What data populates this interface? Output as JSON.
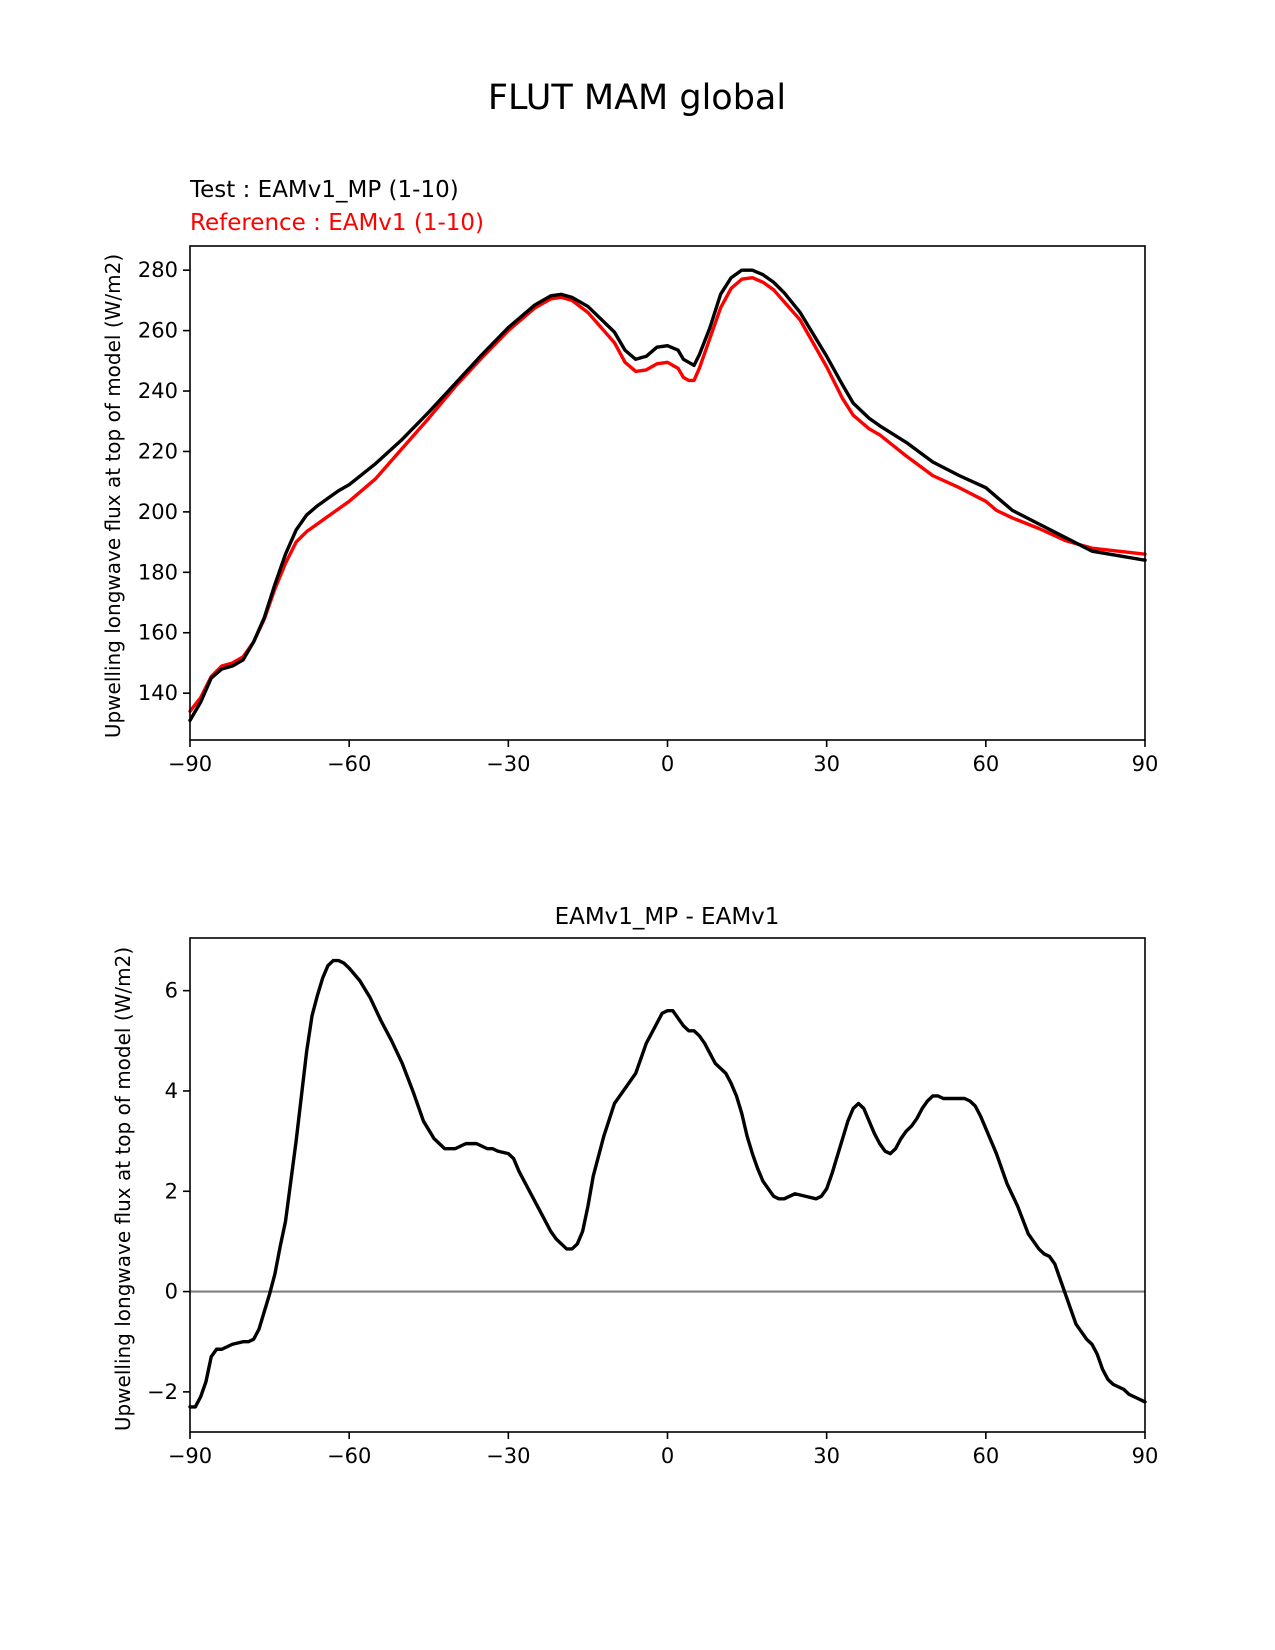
{
  "figure": {
    "suptitle": "FLUT MAM global"
  },
  "chart_data": [
    {
      "type": "line",
      "legend": {
        "test_label": "Test : EAMv1_MP (1-10)",
        "reference_label": "Reference : EAMv1 (1-10)"
      },
      "ylabel": "Upwelling longwave flux at top of model (W/m2)",
      "xlabel": "",
      "xlim": [
        -90,
        90
      ],
      "ylim": [
        124.5,
        288
      ],
      "xticks": [
        -90,
        -60,
        -30,
        0,
        30,
        60,
        90
      ],
      "xtick_labels": [
        "−90",
        "−60",
        "−30",
        "0",
        "30",
        "60",
        "90"
      ],
      "yticks": [
        140,
        160,
        180,
        200,
        220,
        240,
        260,
        280
      ],
      "ytick_labels": [
        "140",
        "160",
        "180",
        "200",
        "220",
        "240",
        "260",
        "280"
      ],
      "series": [
        {
          "name": "Test : EAMv1_MP (1-10)",
          "color": "#000000",
          "x": [
            -90,
            -88,
            -86,
            -84,
            -82,
            -80,
            -78,
            -76,
            -74,
            -72,
            -70,
            -68,
            -66,
            -64,
            -62,
            -60,
            -55,
            -50,
            -45,
            -40,
            -35,
            -30,
            -25,
            -22,
            -20,
            -18,
            -15,
            -10,
            -8,
            -6,
            -4,
            -2,
            0,
            2,
            3,
            4,
            5,
            6,
            8,
            10,
            12,
            14,
            16,
            18,
            20,
            22,
            25,
            30,
            33,
            35,
            38,
            40,
            45,
            50,
            55,
            60,
            62,
            65,
            70,
            75,
            80,
            85,
            90
          ],
          "y": [
            131,
            137,
            145,
            148,
            149,
            151,
            157,
            165,
            176,
            186,
            194,
            199,
            202,
            204.5,
            207,
            209,
            216,
            224,
            233,
            242.5,
            252,
            261,
            268.5,
            271.5,
            272,
            271,
            268,
            259.5,
            253.5,
            250.5,
            251.5,
            254.5,
            255,
            253.5,
            250.5,
            249.5,
            248.5,
            252,
            261,
            272,
            277.5,
            280,
            280,
            278.5,
            276,
            272.5,
            266,
            251.5,
            242,
            236,
            231,
            228.5,
            223,
            216.5,
            212,
            208,
            205,
            200.5,
            196,
            191.5,
            187,
            185.5,
            184
          ]
        },
        {
          "name": "Reference : EAMv1 (1-10)",
          "color": "#ff0000",
          "x": [
            -90,
            -88,
            -86,
            -84,
            -82,
            -80,
            -78,
            -76,
            -74,
            -72,
            -70,
            -68,
            -66,
            -64,
            -62,
            -60,
            -55,
            -50,
            -45,
            -40,
            -35,
            -30,
            -25,
            -22,
            -20,
            -18,
            -15,
            -10,
            -8,
            -6,
            -4,
            -2,
            0,
            2,
            3,
            4,
            5,
            6,
            8,
            10,
            12,
            14,
            16,
            18,
            20,
            22,
            25,
            30,
            33,
            35,
            38,
            40,
            45,
            50,
            55,
            60,
            62,
            65,
            70,
            75,
            80,
            85,
            90
          ],
          "y": [
            134,
            138.5,
            145.5,
            149,
            150,
            152,
            157,
            164.5,
            174.5,
            183,
            190,
            193.5,
            196,
            198.5,
            201,
            203.5,
            211,
            221,
            231,
            241.5,
            251,
            260,
            267.5,
            270.5,
            271,
            270,
            266,
            256,
            249.5,
            246.5,
            247,
            249,
            249.5,
            247.5,
            244.5,
            243.5,
            243.5,
            247.5,
            257.5,
            267.5,
            274,
            277,
            277.5,
            276,
            273.5,
            269.5,
            263.5,
            248,
            237.5,
            232,
            227.5,
            225.5,
            218.5,
            212,
            208,
            203.5,
            200.5,
            198,
            194.5,
            190.5,
            188,
            187,
            186
          ]
        }
      ]
    },
    {
      "type": "line",
      "title": "EAMv1_MP - EAMv1",
      "ylabel": "Upwelling longwave flux at top of model (W/m2)",
      "xlabel": "",
      "xlim": [
        -90,
        90
      ],
      "ylim": [
        -2.8,
        7.05
      ],
      "xticks": [
        -90,
        -60,
        -30,
        0,
        30,
        60,
        90
      ],
      "xtick_labels": [
        "−90",
        "−60",
        "−30",
        "0",
        "30",
        "60",
        "90"
      ],
      "yticks": [
        -2,
        0,
        2,
        4,
        6
      ],
      "ytick_labels": [
        "−2",
        "0",
        "2",
        "4",
        "6"
      ],
      "zero_line": {
        "value": 0,
        "color": "#808080"
      },
      "series": [
        {
          "name": "EAMv1_MP - EAMv1",
          "color": "#000000",
          "x": [
            -90,
            -89,
            -88,
            -87,
            -86,
            -85,
            -84,
            -82,
            -80,
            -79,
            -78,
            -77,
            -76,
            -75,
            -74,
            -73,
            -72,
            -71,
            -70,
            -69,
            -68,
            -67,
            -66,
            -65,
            -64,
            -63,
            -62,
            -61,
            -60,
            -58,
            -56,
            -54,
            -52,
            -50,
            -48,
            -46,
            -44,
            -42,
            -40,
            -38,
            -36,
            -34,
            -33,
            -32,
            -30,
            -29,
            -28,
            -26,
            -24,
            -22,
            -21,
            -20,
            -19,
            -18,
            -17,
            -16,
            -15,
            -14,
            -12,
            -10,
            -8,
            -6,
            -4,
            -3,
            -2,
            -1,
            0,
            1,
            2,
            3,
            4,
            5,
            6,
            7,
            8,
            9,
            10,
            11,
            12,
            13,
            14,
            15,
            16,
            17,
            18,
            19,
            20,
            21,
            22,
            23,
            24,
            26,
            28,
            29,
            30,
            31,
            32,
            33,
            34,
            35,
            36,
            37,
            38,
            39,
            40,
            41,
            42,
            43,
            44,
            45,
            46,
            47,
            48,
            49,
            50,
            51,
            52,
            53,
            54,
            55,
            56,
            57,
            58,
            59,
            60,
            62,
            64,
            66,
            68,
            70,
            71,
            72,
            73,
            74,
            75,
            76,
            77,
            78,
            79,
            80,
            81,
            82,
            83,
            84,
            85,
            86,
            87,
            88,
            89,
            90
          ],
          "y": [
            -2.3,
            -2.3,
            -2.1,
            -1.8,
            -1.3,
            -1.15,
            -1.15,
            -1.05,
            -1.0,
            -1.0,
            -0.95,
            -0.75,
            -0.4,
            -0.05,
            0.35,
            0.9,
            1.4,
            2.2,
            3.0,
            3.9,
            4.8,
            5.5,
            5.9,
            6.25,
            6.5,
            6.6,
            6.6,
            6.55,
            6.45,
            6.2,
            5.85,
            5.4,
            5.0,
            4.55,
            4.0,
            3.4,
            3.05,
            2.85,
            2.85,
            2.95,
            2.95,
            2.85,
            2.85,
            2.8,
            2.75,
            2.65,
            2.4,
            2.0,
            1.6,
            1.2,
            1.05,
            0.95,
            0.85,
            0.85,
            0.95,
            1.2,
            1.7,
            2.3,
            3.1,
            3.75,
            4.05,
            4.35,
            4.95,
            5.15,
            5.35,
            5.55,
            5.6,
            5.6,
            5.45,
            5.3,
            5.2,
            5.2,
            5.1,
            4.95,
            4.75,
            4.55,
            4.45,
            4.35,
            4.15,
            3.9,
            3.55,
            3.1,
            2.75,
            2.45,
            2.2,
            2.05,
            1.9,
            1.85,
            1.85,
            1.9,
            1.95,
            1.9,
            1.85,
            1.9,
            2.05,
            2.35,
            2.7,
            3.05,
            3.4,
            3.65,
            3.75,
            3.65,
            3.4,
            3.15,
            2.95,
            2.8,
            2.75,
            2.85,
            3.05,
            3.2,
            3.3,
            3.45,
            3.65,
            3.8,
            3.9,
            3.9,
            3.85,
            3.85,
            3.85,
            3.85,
            3.85,
            3.8,
            3.7,
            3.5,
            3.25,
            2.75,
            2.15,
            1.7,
            1.15,
            0.85,
            0.75,
            0.7,
            0.55,
            0.25,
            -0.05,
            -0.35,
            -0.65,
            -0.8,
            -0.95,
            -1.05,
            -1.25,
            -1.55,
            -1.75,
            -1.85,
            -1.9,
            -1.95,
            -2.05,
            -2.1,
            -2.15,
            -2.2
          ]
        }
      ]
    }
  ]
}
